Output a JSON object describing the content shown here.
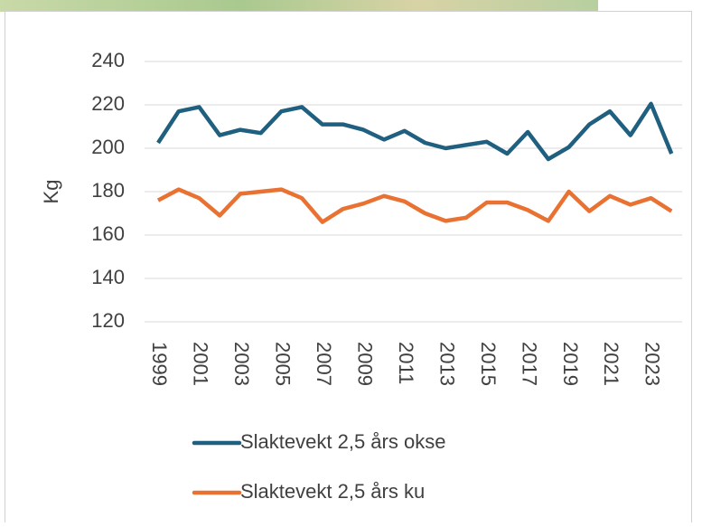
{
  "chart_data": {
    "type": "line",
    "y_label": "Kg",
    "categories": [
      "1999",
      null,
      "2001",
      null,
      "2003",
      null,
      "2005",
      null,
      "2007",
      null,
      "2009",
      null,
      "2011",
      null,
      "2013",
      null,
      "2015",
      null,
      "2017",
      null,
      "2019",
      null,
      "2021",
      null,
      "2023",
      null
    ],
    "series": [
      {
        "name": "Slaktevekt 2,5 års okse",
        "color": "#1f5f7f",
        "values": [
          202.5,
          217,
          219,
          206,
          208.5,
          207,
          217,
          219,
          211,
          211,
          208.5,
          204,
          208,
          202.5,
          200,
          201.5,
          203,
          197.5,
          207.5,
          195,
          200.5,
          211,
          217,
          206,
          220.5,
          197.5
        ]
      },
      {
        "name": "Slaktevekt 2,5 års ku",
        "color": "#e97132",
        "values": [
          176,
          181,
          177,
          169,
          179,
          180,
          181,
          177,
          166,
          172,
          174.5,
          178,
          175.5,
          170,
          166.5,
          168,
          175,
          175,
          171.5,
          166.5,
          180,
          171,
          178,
          174,
          177,
          171
        ]
      }
    ],
    "ylim": [
      120,
      240
    ],
    "yticks": [
      120,
      140,
      160,
      180,
      200,
      220,
      240
    ],
    "grid": true,
    "legend": "bottom"
  }
}
